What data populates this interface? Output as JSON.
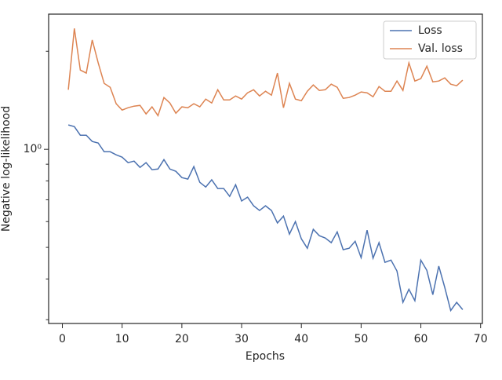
{
  "chart_data": {
    "type": "line",
    "xlabel": "Epochs",
    "ylabel": "Negative log-likelihood",
    "x": [
      1,
      2,
      3,
      4,
      5,
      6,
      7,
      8,
      9,
      10,
      11,
      12,
      13,
      14,
      15,
      16,
      17,
      18,
      19,
      20,
      21,
      22,
      23,
      24,
      25,
      26,
      27,
      28,
      29,
      30,
      31,
      32,
      33,
      34,
      35,
      36,
      37,
      38,
      39,
      40,
      41,
      42,
      43,
      44,
      45,
      46,
      47,
      48,
      49,
      50,
      51,
      52,
      53,
      54,
      55,
      56,
      57,
      58,
      59,
      60,
      61,
      62,
      63,
      64,
      65,
      66,
      67
    ],
    "series": [
      {
        "name": "Loss",
        "color": "#4c72b0",
        "values": [
          1.188,
          1.174,
          1.105,
          1.105,
          1.057,
          1.045,
          0.983,
          0.983,
          0.962,
          0.946,
          0.91,
          0.92,
          0.88,
          0.91,
          0.866,
          0.87,
          0.93,
          0.87,
          0.856,
          0.819,
          0.81,
          0.885,
          0.792,
          0.766,
          0.806,
          0.758,
          0.758,
          0.717,
          0.779,
          0.694,
          0.713,
          0.671,
          0.649,
          0.671,
          0.649,
          0.594,
          0.624,
          0.549,
          0.6,
          0.531,
          0.497,
          0.568,
          0.543,
          0.534,
          0.517,
          0.558,
          0.492,
          0.497,
          0.522,
          0.465,
          0.565,
          0.463,
          0.517,
          0.45,
          0.457,
          0.423,
          0.339,
          0.372,
          0.343,
          0.457,
          0.425,
          0.358,
          0.438,
          0.377,
          0.32,
          0.339,
          0.322
        ]
      },
      {
        "name": "Val. loss",
        "color": "#dd8452",
        "values": [
          1.524,
          2.35,
          1.751,
          1.714,
          2.166,
          1.842,
          1.594,
          1.55,
          1.38,
          1.32,
          1.342,
          1.357,
          1.364,
          1.284,
          1.35,
          1.269,
          1.442,
          1.387,
          1.291,
          1.35,
          1.342,
          1.38,
          1.35,
          1.426,
          1.387,
          1.524,
          1.418,
          1.418,
          1.458,
          1.426,
          1.491,
          1.524,
          1.458,
          1.508,
          1.466,
          1.714,
          1.342,
          1.594,
          1.426,
          1.41,
          1.508,
          1.576,
          1.516,
          1.524,
          1.585,
          1.55,
          1.434,
          1.442,
          1.466,
          1.5,
          1.491,
          1.45,
          1.559,
          1.508,
          1.508,
          1.62,
          1.516,
          1.842,
          1.62,
          1.648,
          1.8,
          1.611,
          1.62,
          1.657,
          1.585,
          1.567,
          1.63
        ]
      }
    ],
    "xlim": [
      -2.3,
      70.3
    ],
    "xticks": [
      0,
      10,
      20,
      30,
      40,
      50,
      60,
      70
    ],
    "ylim": [
      0.292,
      2.6
    ],
    "yscale": "log",
    "yticks": [
      {
        "value": 1,
        "label": "10⁰"
      }
    ],
    "yminor_ticks": [
      0.3,
      0.4,
      0.5,
      0.6,
      0.7,
      0.8,
      0.9,
      2
    ],
    "legend": "upper right"
  }
}
